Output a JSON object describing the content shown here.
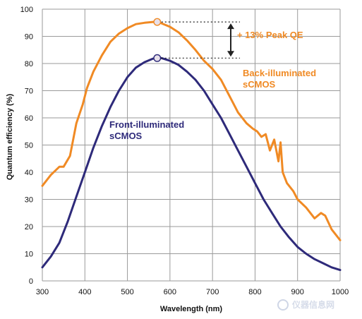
{
  "chart_data": {
    "type": "line",
    "xlabel": "Wavelength (nm)",
    "ylabel": "Quantum efficiency (%)",
    "xlim": [
      300,
      1000
    ],
    "ylim": [
      0,
      100
    ],
    "x_ticks": [
      "300",
      "400",
      "500",
      "600",
      "700",
      "800",
      "900",
      "1000"
    ],
    "y_ticks": [
      "0",
      "10",
      "20",
      "30",
      "40",
      "50",
      "60",
      "70",
      "80",
      "90",
      "100"
    ],
    "grid": true,
    "series": [
      {
        "name_line1": "Back-illuminated",
        "name_line2": "sCMOS",
        "color": "#f08a24",
        "x": [
          300,
          320,
          340,
          350,
          365,
          380,
          395,
          405,
          420,
          440,
          460,
          480,
          500,
          520,
          540,
          560,
          570,
          580,
          600,
          620,
          640,
          660,
          680,
          700,
          720,
          740,
          760,
          780,
          795,
          805,
          815,
          825,
          835,
          845,
          855,
          860,
          865,
          875,
          890,
          900,
          920,
          940,
          955,
          965,
          980,
          1000
        ],
        "y": [
          35,
          39,
          42,
          42,
          46,
          58,
          65,
          71,
          77,
          83,
          88,
          91,
          93,
          94.5,
          95,
          95.3,
          95.3,
          94.8,
          93.5,
          91.5,
          88.5,
          85,
          81,
          78,
          74,
          68,
          62,
          58,
          56,
          55,
          53,
          54,
          48,
          52,
          44,
          51,
          40,
          36,
          33,
          30,
          27,
          23,
          25,
          24,
          19,
          15
        ]
      },
      {
        "name_line1": "Front-illuminated",
        "name_line2": "sCMOS",
        "color": "#2e2a7a",
        "x": [
          300,
          320,
          340,
          360,
          380,
          400,
          420,
          440,
          460,
          480,
          500,
          520,
          540,
          560,
          570,
          580,
          600,
          620,
          640,
          660,
          680,
          700,
          720,
          740,
          760,
          780,
          800,
          820,
          840,
          860,
          880,
          900,
          920,
          940,
          960,
          980,
          1000
        ],
        "y": [
          5,
          9,
          14,
          22,
          31,
          40,
          49,
          57,
          64,
          70,
          75,
          78.5,
          80.5,
          81.8,
          82,
          82,
          81,
          79.5,
          77,
          74,
          70,
          65,
          60,
          54,
          48,
          42,
          36,
          30,
          25,
          20,
          16,
          12.5,
          10,
          8,
          6.5,
          5,
          4
        ]
      }
    ],
    "peak_markers": [
      {
        "x": 570,
        "y": 95.3,
        "color": "#f08a24"
      },
      {
        "x": 570,
        "y": 82,
        "color": "#2e2a7a"
      }
    ],
    "annotation": {
      "text": "+ 13% Peak QE",
      "color": "#f08a24",
      "arrow_color": "#222222"
    }
  },
  "watermark": {
    "text": "仪器信息网"
  }
}
